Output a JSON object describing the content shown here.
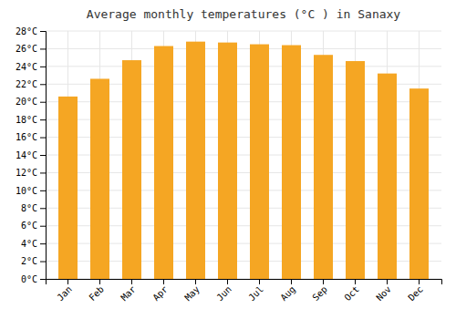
{
  "chart_data": {
    "type": "bar",
    "title": "Average monthly temperatures (°C ) in Sanaxy",
    "categories": [
      "Jan",
      "Feb",
      "Mar",
      "Apr",
      "May",
      "Jun",
      "Jul",
      "Aug",
      "Sep",
      "Oct",
      "Nov",
      "Dec"
    ],
    "values": [
      20.6,
      22.6,
      24.7,
      26.3,
      26.8,
      26.7,
      26.5,
      26.4,
      25.3,
      24.6,
      23.2,
      21.5
    ],
    "color": "#F5A623",
    "ylim": [
      0,
      28
    ],
    "yticks": [
      {
        "value": 0,
        "label": "0°C"
      },
      {
        "value": 2,
        "label": "2°C"
      },
      {
        "value": 4,
        "label": "4°C"
      },
      {
        "value": 6,
        "label": "6°C"
      },
      {
        "value": 8,
        "label": "8°C"
      },
      {
        "value": 10,
        "label": "10°C"
      },
      {
        "value": 12,
        "label": "12°C"
      },
      {
        "value": 14,
        "label": "14°C"
      },
      {
        "value": 16,
        "label": "16°C"
      },
      {
        "value": 18,
        "label": "18°C"
      },
      {
        "value": 20,
        "label": "20°C"
      },
      {
        "value": 22,
        "label": "22°C"
      },
      {
        "value": 24,
        "label": "24°C"
      },
      {
        "value": 26,
        "label": "26°C"
      },
      {
        "value": 28,
        "label": "28°C"
      }
    ],
    "grid": true
  }
}
